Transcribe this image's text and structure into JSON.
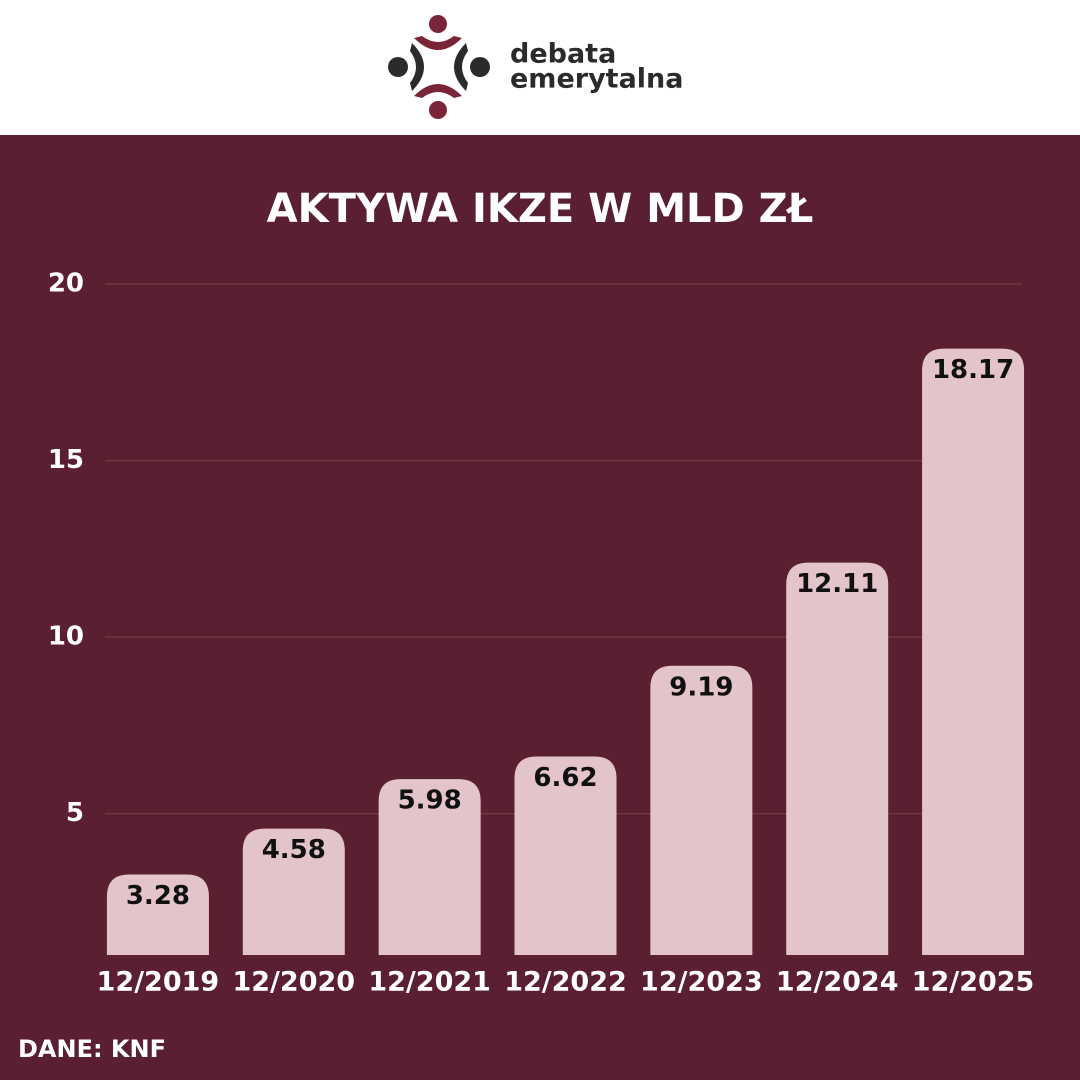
{
  "logo": {
    "line1": "debata",
    "line2": "emerytalna"
  },
  "source": "DANE: KNF",
  "chart_data": {
    "type": "bar",
    "title": "AKTYWA IKZE W MLD ZŁ",
    "categories": [
      "12/2019",
      "12/2020",
      "12/2021",
      "12/2022",
      "12/2023",
      "12/2024",
      "12/2025"
    ],
    "values": [
      3.28,
      4.58,
      5.98,
      6.62,
      9.19,
      12.11,
      18.17
    ],
    "color": "#e2c4ca",
    "ylim": [
      1,
      20
    ],
    "yticks": [
      5,
      10,
      15,
      20
    ],
    "grid": true
  }
}
